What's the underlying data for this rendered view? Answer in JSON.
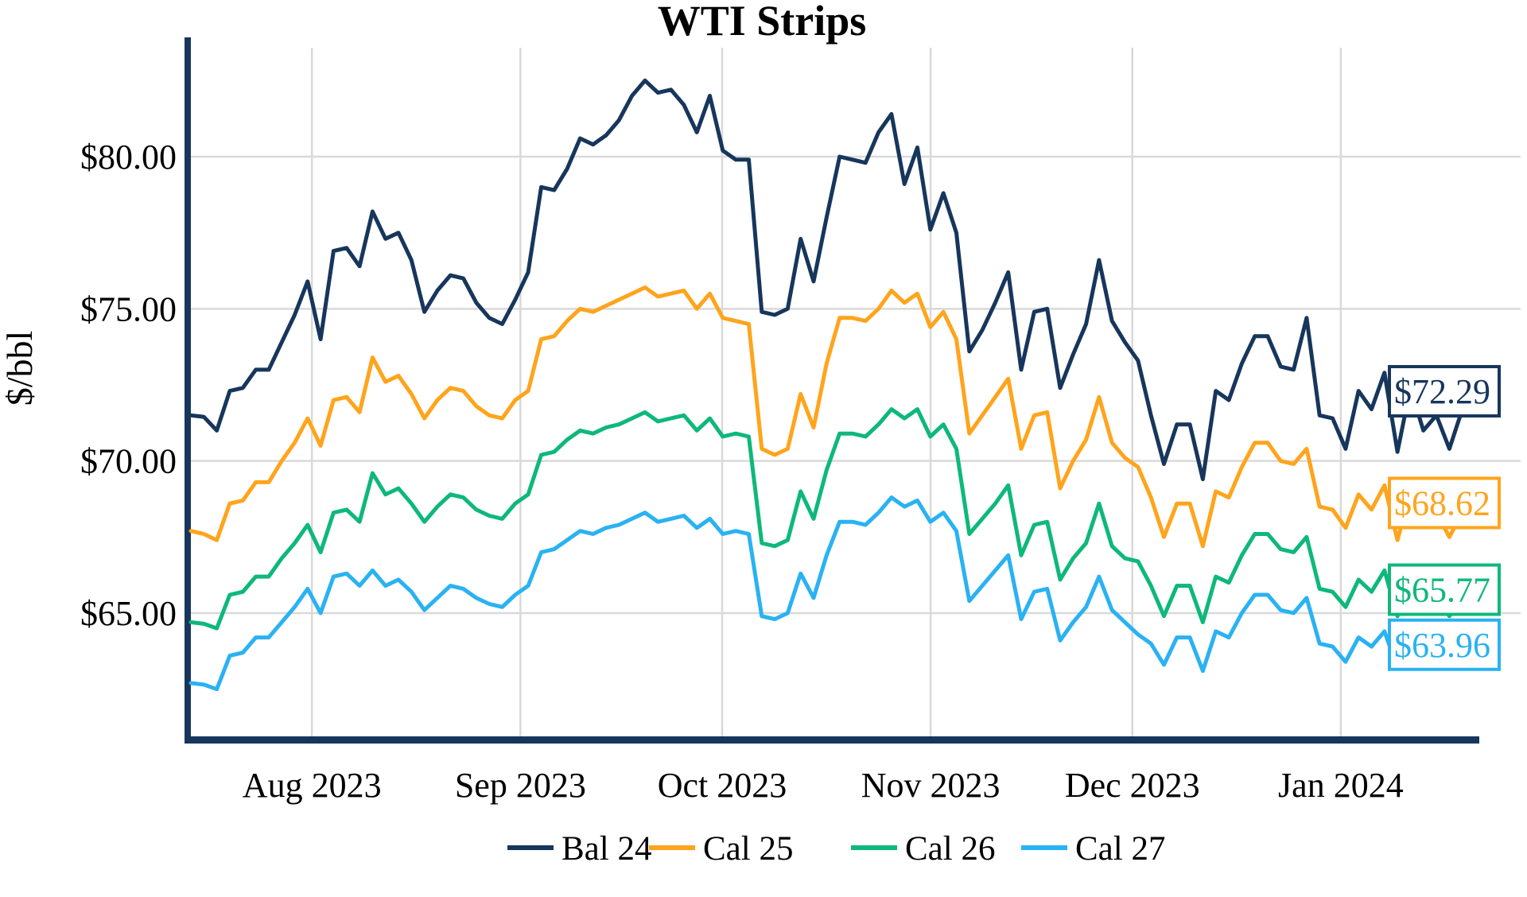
{
  "title": "WTI Strips",
  "y_axis_label": "$/bbl",
  "chart_data": {
    "type": "line",
    "title": "WTI Strips",
    "xlabel": "",
    "ylabel": "$/bbl",
    "ylim": [
      61.0,
      83.6
    ],
    "grid": true,
    "legend_position": "bottom",
    "x_unit": "trading days, mid-July 2023 through mid-January 2024",
    "x_span_days": 191,
    "x_ticks": [
      {
        "label": "Aug 2023",
        "day": 18
      },
      {
        "label": "Sep 2023",
        "day": 49
      },
      {
        "label": "Oct 2023",
        "day": 79
      },
      {
        "label": "Nov 2023",
        "day": 110
      },
      {
        "label": "Dec 2023",
        "day": 140
      },
      {
        "label": "Jan 2024",
        "day": 171
      }
    ],
    "y_ticks": [
      {
        "label": "$80.00",
        "value": 80
      },
      {
        "label": "$75.00",
        "value": 75
      },
      {
        "label": "$70.00",
        "value": 70
      },
      {
        "label": "$65.00",
        "value": 65
      }
    ],
    "series": [
      {
        "name": "Bal 24",
        "color": "#17365C",
        "end_label": "$72.29",
        "last_value": 72.29,
        "values": [
          71.5,
          71.45,
          71.0,
          72.3,
          72.4,
          73.0,
          73.0,
          73.9,
          74.8,
          75.9,
          74.0,
          76.9,
          77.0,
          76.4,
          78.2,
          77.3,
          77.5,
          76.6,
          74.9,
          75.6,
          76.1,
          76.0,
          75.2,
          74.7,
          74.5,
          75.3,
          76.2,
          79.0,
          78.9,
          79.6,
          80.6,
          80.4,
          80.7,
          81.2,
          82.0,
          82.5,
          82.1,
          82.2,
          81.7,
          80.8,
          82.0,
          80.2,
          79.9,
          79.9,
          74.9,
          74.8,
          75.0,
          77.3,
          75.9,
          78.0,
          80.0,
          79.9,
          79.8,
          80.8,
          81.4,
          79.1,
          80.3,
          77.6,
          78.8,
          77.5,
          73.6,
          74.3,
          75.2,
          76.2,
          73.0,
          74.9,
          75.0,
          72.4,
          73.5,
          74.5,
          76.6,
          74.6,
          73.9,
          73.3,
          71.5,
          69.9,
          71.2,
          71.2,
          69.4,
          72.3,
          72.0,
          73.2,
          74.1,
          74.1,
          73.1,
          73.0,
          74.7,
          71.5,
          71.4,
          70.4,
          72.3,
          71.7,
          72.9,
          70.3,
          72.4,
          71.0,
          71.5,
          70.4,
          71.7,
          72.29
        ]
      },
      {
        "name": "Cal 25",
        "color": "#FFA41C",
        "end_label": "$68.62",
        "last_value": 68.62,
        "values": [
          67.7,
          67.6,
          67.4,
          68.6,
          68.7,
          69.3,
          69.3,
          70.0,
          70.6,
          71.4,
          70.5,
          72.0,
          72.1,
          71.6,
          73.4,
          72.6,
          72.8,
          72.2,
          71.4,
          72.0,
          72.4,
          72.3,
          71.8,
          71.5,
          71.4,
          72.0,
          72.3,
          74.0,
          74.1,
          74.6,
          75.0,
          74.9,
          75.1,
          75.3,
          75.5,
          75.7,
          75.4,
          75.5,
          75.6,
          75.0,
          75.5,
          74.7,
          74.6,
          74.5,
          70.4,
          70.2,
          70.4,
          72.2,
          71.1,
          73.2,
          74.7,
          74.7,
          74.6,
          75.0,
          75.6,
          75.2,
          75.5,
          74.4,
          74.9,
          74.0,
          70.9,
          71.5,
          72.1,
          72.7,
          70.4,
          71.5,
          71.6,
          69.1,
          70.0,
          70.7,
          72.1,
          70.6,
          70.1,
          69.8,
          68.8,
          67.5,
          68.6,
          68.6,
          67.2,
          69.0,
          68.8,
          69.8,
          70.6,
          70.6,
          70.0,
          69.9,
          70.4,
          68.5,
          68.4,
          67.8,
          68.9,
          68.4,
          69.2,
          67.4,
          69.0,
          68.0,
          68.3,
          67.5,
          68.3,
          68.62
        ]
      },
      {
        "name": "Cal 26",
        "color": "#0EB87B",
        "end_label": "$65.77",
        "last_value": 65.77,
        "values": [
          64.7,
          64.65,
          64.5,
          65.6,
          65.7,
          66.2,
          66.2,
          66.8,
          67.3,
          67.9,
          67.0,
          68.3,
          68.4,
          68.0,
          69.6,
          68.9,
          69.1,
          68.6,
          68.0,
          68.5,
          68.9,
          68.8,
          68.4,
          68.2,
          68.1,
          68.6,
          68.9,
          70.2,
          70.3,
          70.7,
          71.0,
          70.9,
          71.1,
          71.2,
          71.4,
          71.6,
          71.3,
          71.4,
          71.5,
          71.0,
          71.4,
          70.8,
          70.9,
          70.8,
          67.3,
          67.2,
          67.4,
          69.0,
          68.1,
          69.7,
          70.9,
          70.9,
          70.8,
          71.2,
          71.7,
          71.4,
          71.7,
          70.8,
          71.2,
          70.4,
          67.6,
          68.1,
          68.6,
          69.2,
          66.9,
          67.9,
          68.0,
          66.1,
          66.8,
          67.3,
          68.6,
          67.2,
          66.8,
          66.7,
          65.9,
          64.9,
          65.9,
          65.9,
          64.7,
          66.2,
          66.0,
          66.9,
          67.6,
          67.6,
          67.1,
          67.0,
          67.5,
          65.8,
          65.7,
          65.2,
          66.1,
          65.7,
          66.4,
          64.9,
          66.2,
          65.3,
          65.5,
          64.9,
          65.5,
          65.77
        ]
      },
      {
        "name": "Cal 27",
        "color": "#2AB2F2",
        "end_label": "$63.96",
        "last_value": 63.96,
        "values": [
          62.7,
          62.65,
          62.5,
          63.6,
          63.7,
          64.2,
          64.2,
          64.7,
          65.2,
          65.8,
          65.0,
          66.2,
          66.3,
          65.9,
          66.4,
          65.9,
          66.1,
          65.7,
          65.1,
          65.5,
          65.9,
          65.8,
          65.5,
          65.3,
          65.2,
          65.6,
          65.9,
          67.0,
          67.1,
          67.4,
          67.7,
          67.6,
          67.8,
          67.9,
          68.1,
          68.3,
          68.0,
          68.1,
          68.2,
          67.8,
          68.1,
          67.6,
          67.7,
          67.6,
          64.9,
          64.8,
          65.0,
          66.3,
          65.5,
          66.9,
          68.0,
          68.0,
          67.9,
          68.3,
          68.8,
          68.5,
          68.7,
          68.0,
          68.3,
          67.7,
          65.4,
          65.9,
          66.4,
          66.9,
          64.8,
          65.7,
          65.8,
          64.1,
          64.7,
          65.2,
          66.2,
          65.1,
          64.7,
          64.3,
          64.0,
          63.3,
          64.2,
          64.2,
          63.1,
          64.4,
          64.2,
          65.0,
          65.6,
          65.6,
          65.1,
          65.0,
          65.5,
          64.0,
          63.9,
          63.4,
          64.2,
          63.9,
          64.4,
          63.2,
          63.3,
          63.3,
          63.3,
          63.3,
          63.4,
          63.96
        ]
      }
    ],
    "legend": [
      "Bal 24",
      "Cal 25",
      "Cal 26",
      "Cal 27"
    ]
  },
  "colors": {
    "background": "#FFFFFF",
    "grid": "#D9D9D9",
    "axis": "#17365C",
    "text": "#000000",
    "bal_24": "#17365C",
    "cal_25": "#FFA41C",
    "cal_26": "#0EB87B",
    "cal_27": "#2AB2F2"
  }
}
